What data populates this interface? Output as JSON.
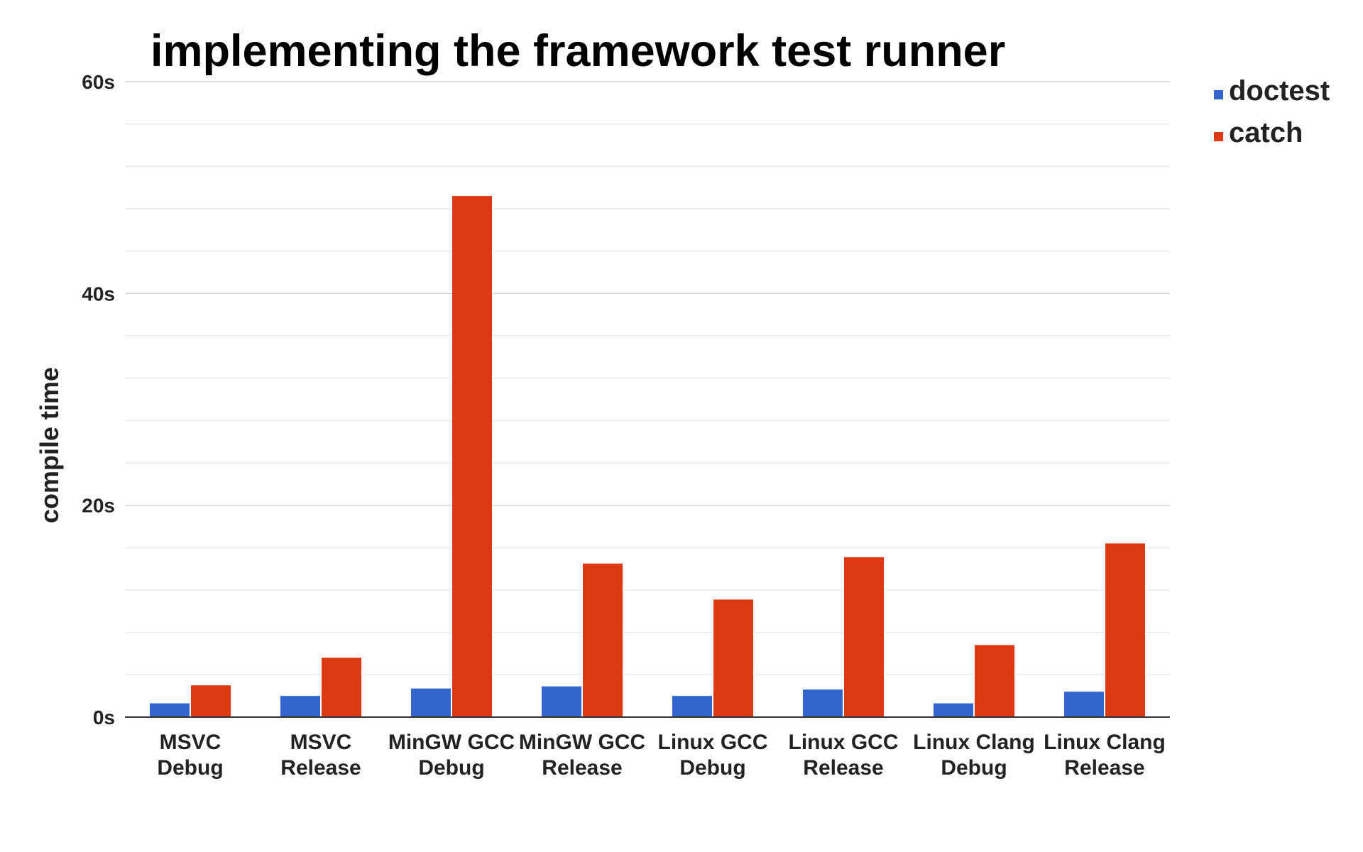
{
  "chart_data": {
    "type": "bar",
    "title": "implementing the framework test runner",
    "xlabel": "",
    "ylabel": "compile time",
    "ylim": [
      0,
      60
    ],
    "y_ticks": [
      {
        "value": 0,
        "label": "0s"
      },
      {
        "value": 20,
        "label": "20s"
      },
      {
        "value": 40,
        "label": "40s"
      },
      {
        "value": 60,
        "label": "60s"
      }
    ],
    "minor_grid_step": 4,
    "grid": true,
    "legend_position": "top-right",
    "categories": [
      [
        "MSVC",
        "Debug"
      ],
      [
        "MSVC",
        "Release"
      ],
      [
        "MinGW GCC",
        "Debug"
      ],
      [
        "MinGW GCC",
        "Release"
      ],
      [
        "Linux GCC",
        "Debug"
      ],
      [
        "Linux GCC",
        "Release"
      ],
      [
        "Linux Clang",
        "Debug"
      ],
      [
        "Linux Clang",
        "Release"
      ]
    ],
    "series": [
      {
        "name": "doctest",
        "color": "#3366cc",
        "values": [
          1.3,
          2.0,
          2.7,
          2.9,
          2.0,
          2.6,
          1.3,
          2.4
        ]
      },
      {
        "name": "catch",
        "color": "#dc3912",
        "values": [
          3.0,
          5.6,
          49.2,
          14.5,
          11.1,
          15.1,
          6.8,
          16.4
        ]
      }
    ]
  }
}
